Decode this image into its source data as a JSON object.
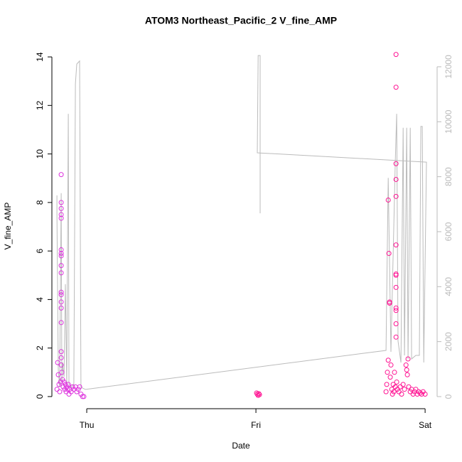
{
  "chart_data": {
    "type": "scatter",
    "title": "ATOM3 Northeast_Pacific_2 V_fine_AMP",
    "xlabel": "Date",
    "ylabel": "V_fine_AMP",
    "xlim": [
      -0.206,
      2.071
    ],
    "xticks": [
      {
        "value": 0,
        "label": "Thu"
      },
      {
        "value": 1,
        "label": "Fri"
      },
      {
        "value": 2,
        "label": "Sat"
      }
    ],
    "ylim": [
      -0.5,
      14.5
    ],
    "yticks": [
      0,
      2,
      4,
      6,
      8,
      10,
      12,
      14
    ],
    "y2lim": [
      -440,
      12800
    ],
    "y2ticks": [
      0,
      2000,
      4000,
      6000,
      8000,
      10000,
      12000
    ],
    "y2color": "#bbbbbb",
    "series": [
      {
        "color": "#dd33dd",
        "x": [
          -0.176,
          -0.172,
          -0.168,
          -0.164,
          -0.16,
          -0.155,
          -0.151,
          -0.151,
          -0.151,
          -0.151,
          -0.151,
          -0.151,
          -0.151,
          -0.151,
          -0.151,
          -0.151,
          -0.151,
          -0.151,
          -0.151,
          -0.151,
          -0.151,
          -0.151,
          -0.151,
          -0.151,
          -0.147,
          -0.143,
          -0.139,
          -0.134,
          -0.13,
          -0.126,
          -0.122,
          -0.118,
          -0.113,
          -0.109,
          -0.105,
          -0.1,
          -0.092,
          -0.084,
          -0.076,
          -0.067,
          -0.059,
          -0.05,
          -0.042,
          -0.034,
          -0.025,
          -0.017
        ],
        "values": [
          0.3,
          1.4,
          0.9,
          0.5,
          0.2,
          0.6,
          9.15,
          8.0,
          7.75,
          7.5,
          7.35,
          6.05,
          5.9,
          5.8,
          5.4,
          5.1,
          4.3,
          4.2,
          3.9,
          3.65,
          3.05,
          1.85,
          1.6,
          1.3,
          1.0,
          0.7,
          0.4,
          0.6,
          0.3,
          0.5,
          0.2,
          0.4,
          0.3,
          0.5,
          0.1,
          0.3,
          0.2,
          0.4,
          0.3,
          0.4,
          0.2,
          0.3,
          0.4,
          0.1,
          0.0,
          0.0
        ]
      },
      {
        "color": "#ff1493",
        "x": [
          1.004,
          1.008,
          1.013,
          1.017,
          1.021,
          1.769,
          1.773,
          1.777,
          1.782,
          1.782,
          1.786,
          1.79,
          1.79,
          1.794,
          1.798,
          1.803,
          1.807,
          1.811,
          1.815,
          1.819,
          1.824,
          1.828,
          1.828,
          1.828,
          1.828,
          1.828,
          1.828,
          1.828,
          1.828,
          1.828,
          1.828,
          1.828,
          1.828,
          1.828,
          1.832,
          1.836,
          1.845,
          1.853,
          1.861,
          1.87,
          1.878,
          1.887,
          1.891,
          1.895,
          1.899,
          1.903,
          1.912,
          1.92,
          1.929,
          1.937,
          1.945,
          1.954,
          1.962,
          1.971,
          1.979,
          1.988,
          2.0
        ],
        "values": [
          0.15,
          0.1,
          0.05,
          0.12,
          0.08,
          0.2,
          0.5,
          1.0,
          1.5,
          8.1,
          5.9,
          3.9,
          3.85,
          0.8,
          1.3,
          0.3,
          0.1,
          0.5,
          0.2,
          1.0,
          0.4,
          14.1,
          12.75,
          9.6,
          8.95,
          8.25,
          6.25,
          5.05,
          5.0,
          4.5,
          3.65,
          3.55,
          3.0,
          2.45,
          0.6,
          0.3,
          0.2,
          0.4,
          0.1,
          0.5,
          0.3,
          1.3,
          1.1,
          0.9,
          1.55,
          0.4,
          0.2,
          0.3,
          0.1,
          0.2,
          0.3,
          0.1,
          0.2,
          0.15,
          0.1,
          0.2,
          0.1
        ]
      },
      {
        "type": "line",
        "axis": "y2",
        "color": "#bbbbbb",
        "x": [
          -0.176,
          -0.176,
          -0.168,
          -0.16,
          -0.151,
          -0.147,
          -0.143,
          -0.134,
          -0.126,
          -0.118,
          -0.109,
          -0.105,
          -0.092,
          -0.076,
          -0.067,
          -0.059,
          -0.042,
          -0.034,
          -0.008,
          1.769,
          1.782,
          1.798,
          1.824,
          1.832,
          1.84,
          1.857,
          1.87,
          1.878,
          1.891,
          1.899,
          1.912,
          1.92,
          1.945,
          1.966,
          1.975,
          1.983,
          1.992,
          2.008,
          1.008,
          1.013,
          1.025,
          1.025
        ],
        "values": [
          7320,
          6670,
          980,
          340,
          7400,
          470,
          1240,
          720,
          4090,
          470,
          10290,
          470,
          340,
          470,
          11380,
          12100,
          12210,
          340,
          260,
          1680,
          7960,
          1630,
          8610,
          10290,
          2020,
          1240,
          9780,
          1500,
          9780,
          1370,
          9780,
          1370,
          1500,
          1500,
          9830,
          9830,
          1240,
          8530,
          8870,
          12410,
          12410,
          6670
        ]
      }
    ]
  }
}
